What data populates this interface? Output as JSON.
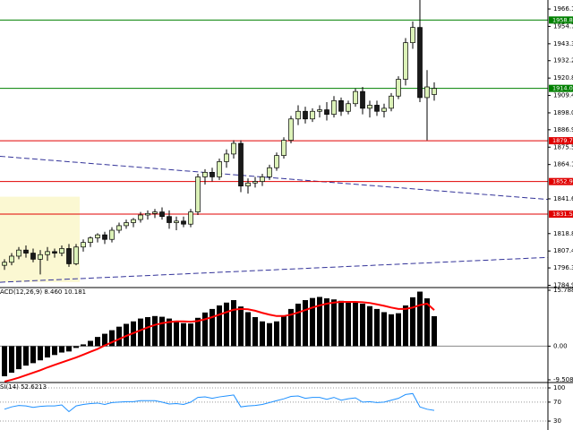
{
  "chart_data": [
    {
      "type": "candlestick",
      "ylim": [
        1784,
        1972
      ],
      "yticks": [
        {
          "value": 1966.1,
          "label": "1966.10"
        },
        {
          "value": 1954.7,
          "label": "1954.70"
        },
        {
          "value": 1943.3,
          "label": "1943.30"
        },
        {
          "value": 1932.2,
          "label": "1932.20"
        },
        {
          "value": 1920.8,
          "label": "1920.80"
        },
        {
          "value": 1909.4,
          "label": "1909.40"
        },
        {
          "value": 1898,
          "label": "1898.00"
        },
        {
          "value": 1886.9,
          "label": "1886.90"
        },
        {
          "value": 1875.5,
          "label": "1875.50"
        },
        {
          "value": 1864.1,
          "label": "1864.10"
        },
        {
          "value": 1841.6,
          "label": "1841.60"
        },
        {
          "value": 1818.8,
          "label": "1818.80"
        },
        {
          "value": 1807.4,
          "label": "1807.40"
        },
        {
          "value": 1796.3,
          "label": "1796.30"
        },
        {
          "value": 1784.9,
          "label": "1784.90"
        }
      ],
      "up_color": "#dcf2b8",
      "down_color": "#1a1a1a",
      "candles": [
        [
          1798,
          1802,
          1795,
          1800
        ],
        [
          1800,
          1806,
          1798,
          1804
        ],
        [
          1804,
          1810,
          1802,
          1808
        ],
        [
          1808,
          1811,
          1803,
          1806
        ],
        [
          1806,
          1809,
          1800,
          1802
        ],
        [
          1802,
          1808,
          1792,
          1805
        ],
        [
          1805,
          1810,
          1801,
          1807
        ],
        [
          1807,
          1809,
          1803,
          1806
        ],
        [
          1806,
          1811,
          1804,
          1809
        ],
        [
          1809,
          1812,
          1797,
          1799
        ],
        [
          1799,
          1812,
          1798,
          1810
        ],
        [
          1810,
          1815,
          1807,
          1813
        ],
        [
          1813,
          1817,
          1810,
          1816
        ],
        [
          1816,
          1819,
          1813,
          1818
        ],
        [
          1818,
          1820,
          1812,
          1815
        ],
        [
          1815,
          1823,
          1813,
          1821
        ],
        [
          1821,
          1826,
          1819,
          1824
        ],
        [
          1824,
          1828,
          1822,
          1826
        ],
        [
          1826,
          1829,
          1823,
          1828
        ],
        [
          1828,
          1833,
          1826,
          1831
        ],
        [
          1831,
          1834,
          1828,
          1832
        ],
        [
          1832,
          1835,
          1829,
          1833
        ],
        [
          1833,
          1836,
          1828,
          1830
        ],
        [
          1830,
          1834,
          1822,
          1826
        ],
        [
          1826,
          1830,
          1821,
          1827
        ],
        [
          1827,
          1830,
          1823,
          1825
        ],
        [
          1825,
          1835,
          1823,
          1833
        ],
        [
          1833,
          1858,
          1831,
          1856
        ],
        [
          1856,
          1861,
          1851,
          1859
        ],
        [
          1859,
          1862,
          1853,
          1856
        ],
        [
          1856,
          1868,
          1854,
          1866
        ],
        [
          1866,
          1874,
          1862,
          1871
        ],
        [
          1871,
          1880,
          1868,
          1878
        ],
        [
          1878,
          1880,
          1846,
          1850
        ],
        [
          1850,
          1855,
          1845,
          1852
        ],
        [
          1852,
          1856,
          1849,
          1853
        ],
        [
          1853,
          1858,
          1850,
          1856
        ],
        [
          1856,
          1864,
          1854,
          1862
        ],
        [
          1862,
          1872,
          1860,
          1870
        ],
        [
          1870,
          1882,
          1868,
          1880
        ],
        [
          1880,
          1896,
          1878,
          1894
        ],
        [
          1894,
          1903,
          1890,
          1899
        ],
        [
          1899,
          1902,
          1891,
          1894
        ],
        [
          1894,
          1901,
          1892,
          1899
        ],
        [
          1899,
          1903,
          1895,
          1900
        ],
        [
          1900,
          1905,
          1893,
          1897
        ],
        [
          1897,
          1909,
          1895,
          1906
        ],
        [
          1906,
          1908,
          1896,
          1899
        ],
        [
          1899,
          1906,
          1897,
          1904
        ],
        [
          1904,
          1914,
          1902,
          1912
        ],
        [
          1912,
          1915,
          1897,
          1901
        ],
        [
          1901,
          1906,
          1895,
          1903
        ],
        [
          1903,
          1906,
          1896,
          1899
        ],
        [
          1899,
          1904,
          1895,
          1901
        ],
        [
          1901,
          1911,
          1899,
          1909
        ],
        [
          1909,
          1922,
          1907,
          1920
        ],
        [
          1920,
          1947,
          1916,
          1944
        ],
        [
          1944,
          1958,
          1940,
          1954
        ],
        [
          1954,
          1972,
          1905,
          1908
        ],
        [
          1908,
          1926,
          1880,
          1915
        ],
        [
          1910,
          1918,
          1906,
          1914
        ]
      ],
      "levels": [
        {
          "value": 1958.87,
          "color": "#008000"
        },
        {
          "value": 1914.03,
          "color": "#008000"
        },
        {
          "value": 1879.71,
          "color": "#e00000"
        },
        {
          "value": 1852.93,
          "color": "#e00000"
        },
        {
          "value": 1831.58,
          "color": "#e00000"
        }
      ],
      "trendlines": [
        {
          "values": [
            1869.5,
            1841.2
          ],
          "color": "#333399"
        },
        {
          "values": [
            1786.9,
            1803.2
          ],
          "color": "#333399"
        }
      ],
      "zone": {
        "ylim": [
          1787,
          1843
        ],
        "color": "#fbf8d2"
      }
    },
    {
      "type": "macd",
      "label": "ACD(12,26,9) 8.460 10.181",
      "ylim": [
        -9.508,
        15.788
      ],
      "yticks": [
        15.788,
        {
          "value": 0,
          "label": "0.00"
        },
        -9.508
      ],
      "histogram": {
        "color": "#000000",
        "values": [
          -8.5,
          -7.5,
          -6.5,
          -5.5,
          -4.8,
          -4,
          -3.2,
          -2.5,
          -1.8,
          -1.5,
          -0.5,
          0.5,
          1.5,
          2.6,
          3.5,
          4.5,
          5.5,
          6.3,
          7,
          7.8,
          8.2,
          8.5,
          8.3,
          7.8,
          7.2,
          6.5,
          6.4,
          8,
          9.5,
          10.5,
          11.5,
          12.3,
          13,
          11.2,
          9.6,
          8.2,
          7,
          6.5,
          7,
          8.6,
          10.5,
          12,
          13,
          13.6,
          13.9,
          13.5,
          13.2,
          12.8,
          12.4,
          12.6,
          12,
          11.3,
          10.5,
          9.6,
          9,
          9.3,
          11.5,
          13.8,
          15.4,
          13.5,
          8.46
        ]
      },
      "signal": {
        "color": "#ff0000",
        "values": [
          -10,
          -9.5,
          -8.9,
          -8.2,
          -7.5,
          -6.8,
          -6,
          -5.3,
          -4.6,
          -3.9,
          -3.2,
          -2.4,
          -1.6,
          -0.8,
          0.2,
          1.1,
          2,
          2.9,
          3.7,
          4.5,
          5.3,
          6,
          6.5,
          6.8,
          7,
          7,
          6.9,
          7.1,
          7.6,
          8.2,
          8.9,
          9.6,
          10.3,
          10.5,
          10.4,
          10,
          9.4,
          8.9,
          8.5,
          8.5,
          8.9,
          9.5,
          10.2,
          10.9,
          11.5,
          12,
          12.3,
          12.5,
          12.5,
          12.5,
          12.4,
          12.2,
          11.8,
          11.4,
          10.9,
          10.5,
          10.5,
          10.9,
          11.6,
          12,
          10.181
        ]
      }
    },
    {
      "type": "line",
      "label": "SI(14) 52.6213",
      "ylim": [
        15,
        100
      ],
      "yticks": [
        100,
        70,
        30
      ],
      "grid": true,
      "color": "#1e90ff",
      "values": [
        55,
        60,
        63,
        62,
        59,
        61,
        62,
        62,
        64,
        50,
        62,
        65,
        67,
        68,
        65,
        69,
        70,
        71,
        71,
        73,
        73,
        73,
        70,
        66,
        67,
        65,
        70,
        80,
        81,
        78,
        81,
        83,
        85,
        60,
        62,
        63,
        65,
        69,
        73,
        77,
        82,
        83,
        78,
        80,
        80,
        76,
        80,
        74,
        77,
        79,
        70,
        71,
        69,
        70,
        74,
        78,
        86,
        88,
        60,
        55,
        52.6213
      ]
    }
  ]
}
